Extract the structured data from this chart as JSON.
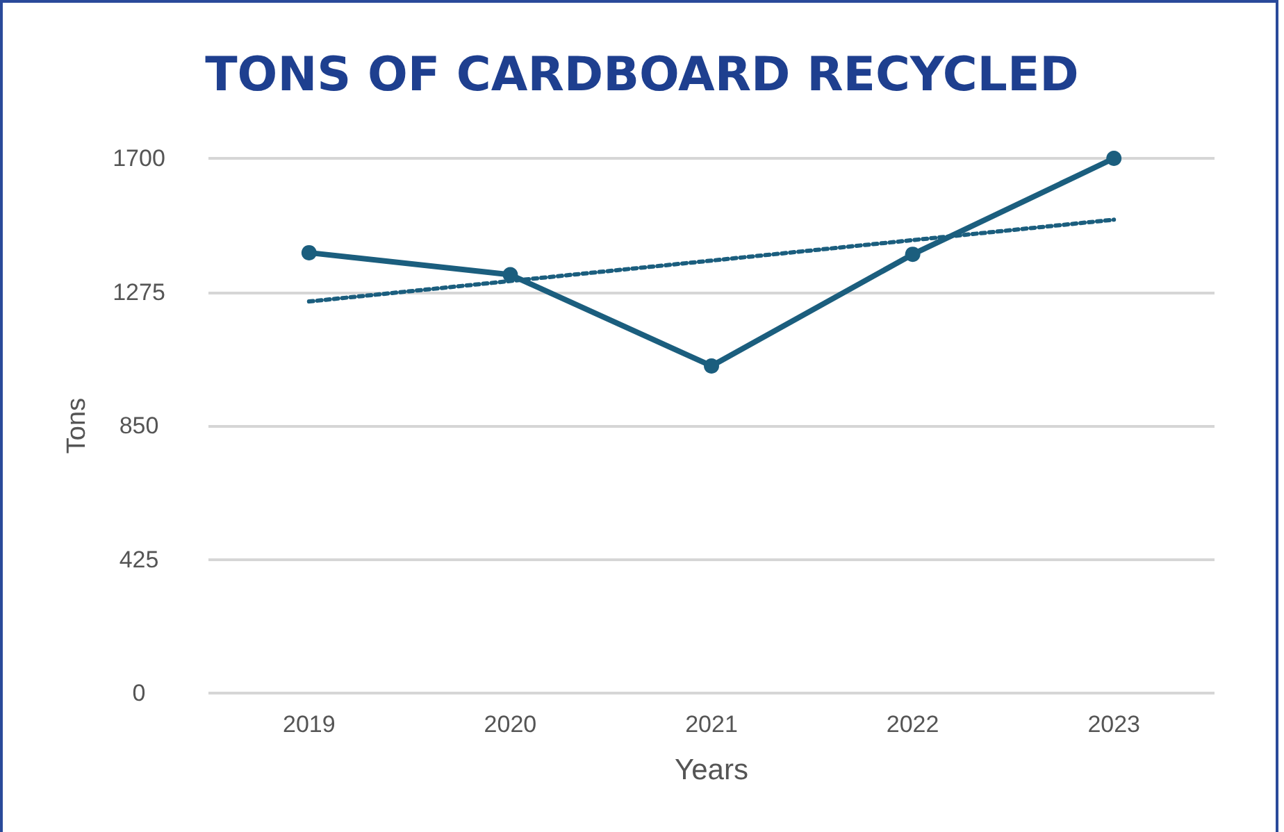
{
  "chart_data": {
    "type": "line",
    "title": "TONS OF CARDBOARD RECYCLED",
    "xlabel": "Years",
    "ylabel": "Tons",
    "categories": [
      "2019",
      "2020",
      "2021",
      "2022",
      "2023"
    ],
    "series": [
      {
        "color": "#1b5e7e",
        "values": [
          1400,
          1330,
          1040,
          1395,
          1700
        ],
        "marker": "circle",
        "line_style": "solid"
      },
      {
        "type": "line",
        "color": "#1b5e7e",
        "values": [
          1245,
          null,
          null,
          null,
          1505
        ],
        "marker": "none",
        "line_style": "dotted"
      }
    ],
    "ylim": [
      0,
      1700
    ],
    "yticks": [
      0,
      425,
      850,
      1275,
      1700
    ],
    "grid": "y"
  }
}
